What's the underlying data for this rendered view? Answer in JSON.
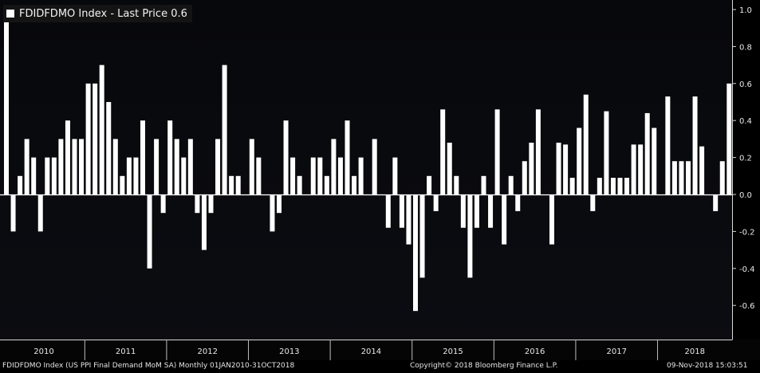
{
  "legend": {
    "label": "FDIDFDMO Index - Last Price 0.6",
    "swatch_color": "#ffffff"
  },
  "footer": {
    "left": "FDIDFDMO Index (US PPI Final Demand MoM SA)  Monthly 01JAN2010-31OCT2018",
    "center": "Copyright© 2018 Bloomberg Finance L.P.",
    "right": "09-Nov-2018 15:03:51"
  },
  "chart_data": {
    "type": "bar",
    "title": "FDIDFDMO Index - Last Price 0.6",
    "xlabel": "",
    "ylabel": "",
    "ylim": [
      -0.78,
      1.02
    ],
    "y_ticks": [
      "1.0",
      "0.8",
      "0.6",
      "0.4",
      "0.2",
      "0.0",
      "-0.2",
      "-0.4",
      "-0.6"
    ],
    "y_tick_values": [
      1.0,
      0.8,
      0.6,
      0.4,
      0.2,
      0.0,
      -0.2,
      -0.4,
      -0.6
    ],
    "x_year_labels": [
      "2010",
      "2011",
      "2012",
      "2013",
      "2014",
      "2015",
      "2016",
      "2017",
      "2018"
    ],
    "bar_color": "#ffffff",
    "background": "#0a0b10",
    "series": [
      {
        "values": [
          1.0,
          -0.2,
          0.1,
          0.3,
          0.2,
          -0.2,
          0.2,
          0.2,
          0.3,
          0.4,
          0.3,
          0.3,
          0.6,
          0.6,
          0.7,
          0.5,
          0.3,
          0.1,
          0.2,
          0.2,
          0.4,
          -0.4,
          0.3,
          -0.1,
          0.4,
          0.3,
          0.2,
          0.3,
          -0.1,
          -0.3,
          -0.1,
          0.3,
          0.7,
          0.1,
          0.1,
          0.0,
          0.3,
          0.2,
          0.0,
          -0.2,
          -0.1,
          0.4,
          0.2,
          0.1,
          0.0,
          0.2,
          0.2,
          0.1,
          0.3,
          0.2,
          0.4,
          0.1,
          0.2,
          0.0,
          0.3,
          0.0,
          -0.18,
          0.2,
          -0.18,
          -0.27,
          -0.63,
          -0.45,
          0.1,
          -0.09,
          0.46,
          0.28,
          0.1,
          -0.18,
          -0.45,
          -0.18,
          0.1,
          -0.18,
          0.46,
          -0.27,
          0.1,
          -0.09,
          0.18,
          0.28,
          0.46,
          0.0,
          -0.27,
          0.28,
          0.27,
          0.09,
          0.36,
          0.54,
          -0.09,
          0.09,
          0.45,
          0.09,
          0.09,
          0.09,
          0.27,
          0.27,
          0.44,
          0.36,
          0.0,
          0.53,
          0.18,
          0.18,
          0.18,
          0.53,
          0.26,
          0.0,
          -0.09,
          0.18,
          0.6
        ]
      }
    ]
  }
}
